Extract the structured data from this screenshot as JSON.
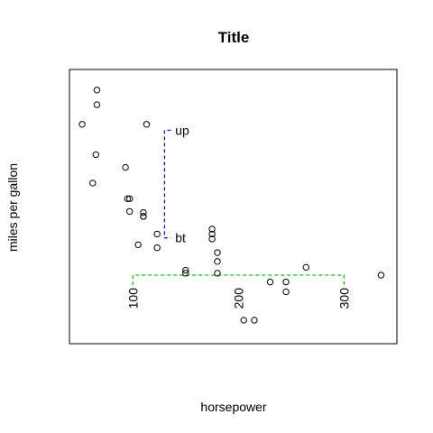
{
  "chart_data": {
    "type": "scatter",
    "title": "Title",
    "xlabel": "horsepower",
    "ylabel": "miles per gallon",
    "xlim": [
      40,
      350
    ],
    "ylim": [
      8,
      36
    ],
    "x_ticks": [
      {
        "value": 100,
        "label": "100"
      },
      {
        "value": 200,
        "label": "200"
      },
      {
        "value": 300,
        "label": "300"
      }
    ],
    "points": [
      {
        "x": 66,
        "y": 33.9
      },
      {
        "x": 66,
        "y": 32.4
      },
      {
        "x": 52,
        "y": 30.4
      },
      {
        "x": 113,
        "y": 30.4
      },
      {
        "x": 65,
        "y": 27.3
      },
      {
        "x": 93,
        "y": 26.0
      },
      {
        "x": 62,
        "y": 24.4
      },
      {
        "x": 95,
        "y": 22.8
      },
      {
        "x": 97,
        "y": 22.8
      },
      {
        "x": 97,
        "y": 21.5
      },
      {
        "x": 110,
        "y": 21.4
      },
      {
        "x": 110,
        "y": 21.0
      },
      {
        "x": 110,
        "y": 21.0
      },
      {
        "x": 123,
        "y": 19.2
      },
      {
        "x": 105,
        "y": 18.1
      },
      {
        "x": 123,
        "y": 17.8
      },
      {
        "x": 175,
        "y": 19.7
      },
      {
        "x": 175,
        "y": 19.2
      },
      {
        "x": 175,
        "y": 18.7
      },
      {
        "x": 180,
        "y": 17.3
      },
      {
        "x": 180,
        "y": 16.4
      },
      {
        "x": 180,
        "y": 15.2
      },
      {
        "x": 150,
        "y": 15.5
      },
      {
        "x": 150,
        "y": 15.2
      },
      {
        "x": 264,
        "y": 15.8
      },
      {
        "x": 230,
        "y": 14.3
      },
      {
        "x": 245,
        "y": 14.3
      },
      {
        "x": 245,
        "y": 13.3
      },
      {
        "x": 335,
        "y": 15.0
      },
      {
        "x": 205,
        "y": 10.4
      },
      {
        "x": 215,
        "y": 10.4
      }
    ],
    "annotations": [
      {
        "text": "up",
        "x": 135,
        "y": 29.8
      },
      {
        "text": "bt",
        "x": 135,
        "y": 18.8
      }
    ],
    "brackets": [
      {
        "orientation": "vertical",
        "color": "#0000ff",
        "x": 130,
        "y_from": 18.8,
        "y_to": 29.8
      },
      {
        "orientation": "horizontal",
        "color": "#00cc00",
        "y": 15.0,
        "x_from": 100,
        "x_to": 300
      }
    ],
    "grid": false,
    "legend": "none"
  }
}
